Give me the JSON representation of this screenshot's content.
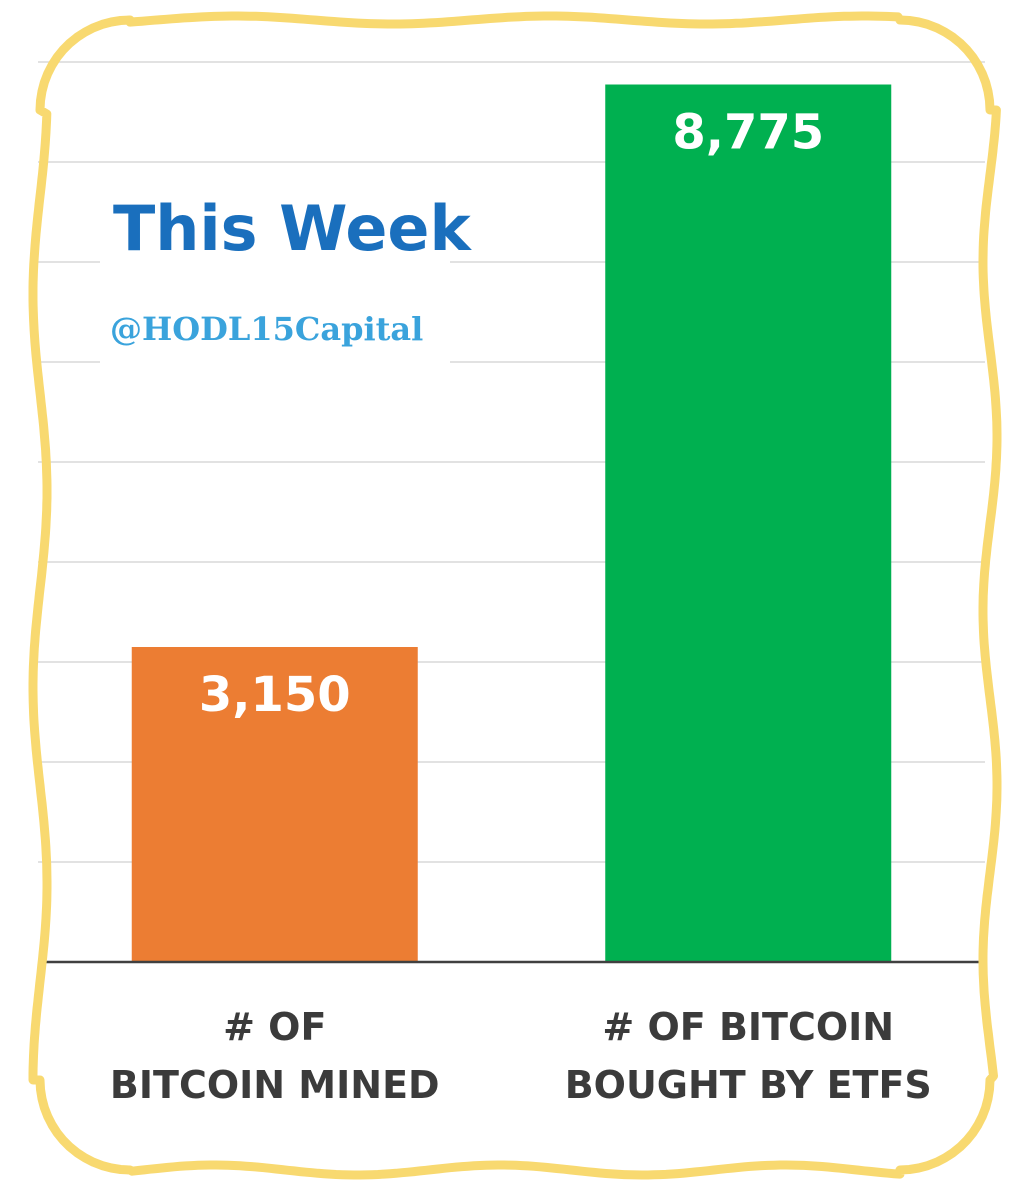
{
  "colors": {
    "frame": "#f8d970",
    "mined_bar": "#ec7d33",
    "etf_bar": "#00b050",
    "title": "#1a6fbd",
    "handle": "#3aa3dc",
    "label": "#3b3b3b",
    "gridline": "#d9d9d9",
    "axis": "#404040"
  },
  "chart_data": {
    "type": "bar",
    "title": "This Week",
    "subtitle": "@HODL15Capital",
    "categories": [
      "# OF BITCOIN MINED",
      "# OF BITCOIN BOUGHT BY ETFS"
    ],
    "category_lines": [
      [
        "# OF",
        "BITCOIN MINED"
      ],
      [
        "# OF BITCOIN",
        "BOUGHT BY ETFS"
      ]
    ],
    "values": [
      3150,
      8775
    ],
    "value_labels": [
      "3,150",
      "8,775"
    ],
    "bar_colors": [
      "#ec7d33",
      "#00b050"
    ],
    "ylim": [
      0,
      9000
    ],
    "gridline_step": 1000,
    "grid": true,
    "legend": "none"
  }
}
